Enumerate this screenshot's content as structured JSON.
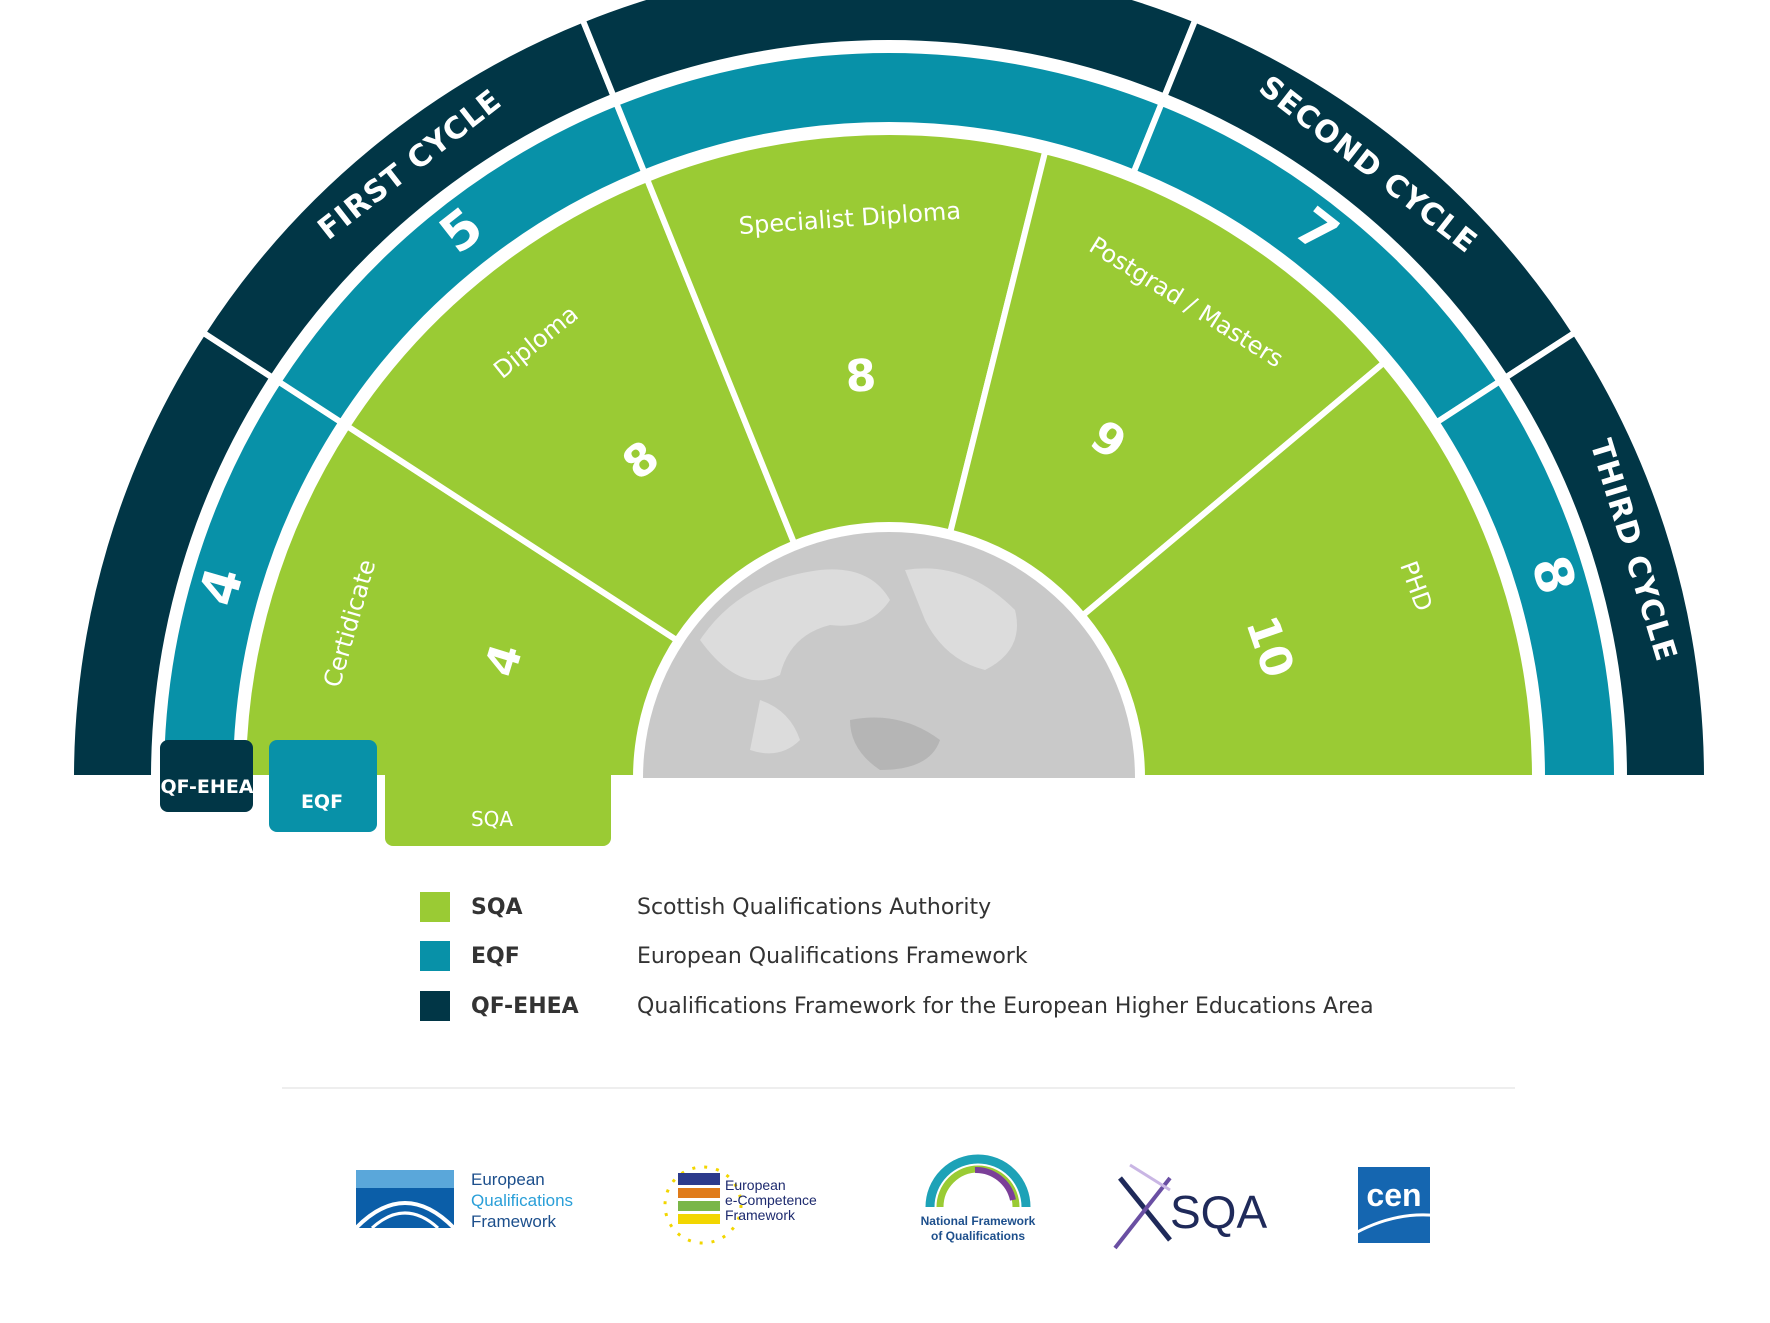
{
  "colors": {
    "sqa": "#9acb34",
    "eqf": "#0891a8",
    "qfehea": "#013646",
    "globe": "#c9c9c9",
    "legend_text": "#333333"
  },
  "diagram": {
    "cycles": [
      {
        "label": "FIRST  CYCLE"
      },
      {
        "label": ""
      },
      {
        "label": "SECOND CYCLE"
      },
      {
        "label": "THIRD CYCLE"
      }
    ],
    "eqf_levels": [
      {
        "level": "4"
      },
      {
        "level": "5"
      },
      {
        "level": ""
      },
      {
        "level": "7"
      },
      {
        "level": "8"
      }
    ],
    "sqa_segments": [
      {
        "label": "Certidicate",
        "level": "4"
      },
      {
        "label": "Diploma",
        "level": "8"
      },
      {
        "label": "Specialist Diploma",
        "level": "8"
      },
      {
        "label": "Postgrad / Masters",
        "level": "9"
      },
      {
        "label": "PHD",
        "level": "10"
      }
    ],
    "tabs": {
      "qfehea": "QF-EHEA",
      "eqf": "EQF",
      "sqa": "SQA"
    }
  },
  "legend": [
    {
      "abbr": "SQA",
      "desc": "Scottish Qualifications Authority",
      "color_key": "sqa"
    },
    {
      "abbr": "EQF",
      "desc": "European Qualifications Framework",
      "color_key": "eqf"
    },
    {
      "abbr": "QF-EHEA",
      "desc": "Qualifications Framework for the European Higher Educations Area",
      "color_key": "qfehea"
    }
  ],
  "logos": [
    {
      "name": "european-qualifications-framework",
      "lines": [
        "European",
        "Qualifications",
        "Framework"
      ]
    },
    {
      "name": "european-e-competence-framework",
      "lines": [
        "European",
        "e-Competence",
        "Framework"
      ]
    },
    {
      "name": "national-framework-of-qualifications",
      "lines": [
        "National Framework",
        "of Qualifications"
      ]
    },
    {
      "name": "sqa",
      "lines": [
        "SQA"
      ]
    },
    {
      "name": "cen",
      "lines": [
        "cen"
      ]
    }
  ]
}
